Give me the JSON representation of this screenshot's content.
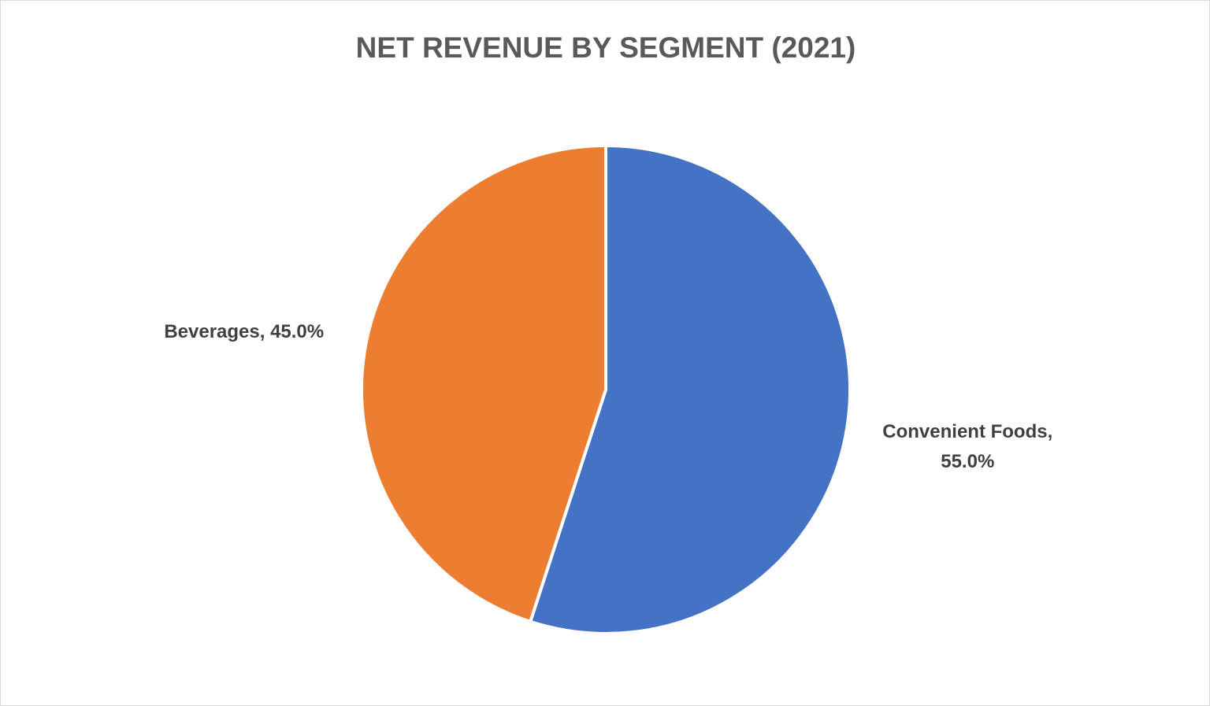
{
  "chart_data": {
    "type": "pie",
    "title": "NET REVENUE BY SEGMENT (2021)",
    "values": [
      55,
      45
    ],
    "value_labels": [
      "Convenient Foods, 55.0%",
      "Beverages, 45.0%"
    ],
    "colors": [
      "#4472c4",
      "#ed7d31"
    ]
  }
}
